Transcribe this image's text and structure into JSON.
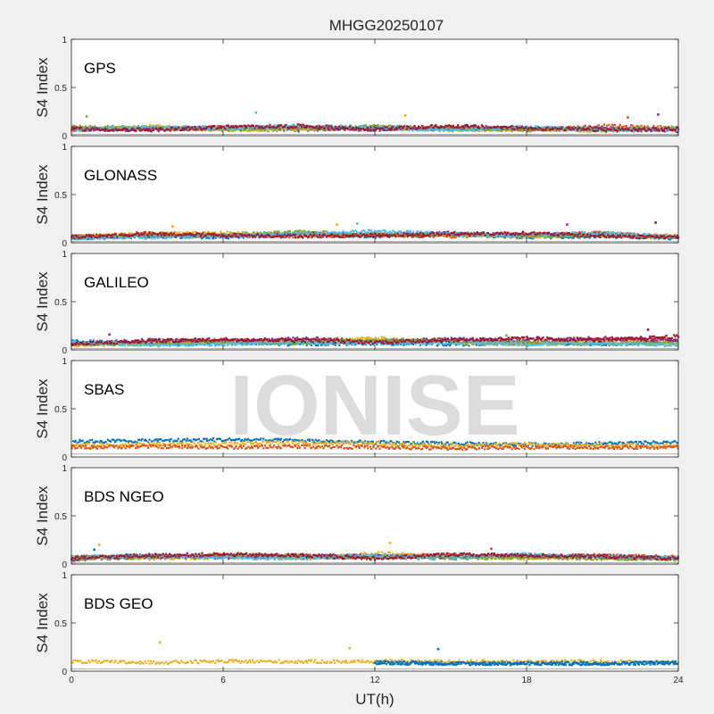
{
  "chart_data": {
    "type": "scatter",
    "title": "MHGG20250107",
    "xlabel": "UT(h)",
    "ylabel": "S4 Index",
    "xlim": [
      0,
      24
    ],
    "ylim": [
      0,
      1
    ],
    "xticks": [
      0,
      6,
      12,
      18,
      24
    ],
    "yticks": [
      0,
      0.5,
      1
    ],
    "ytick_labels": [
      "0",
      "0.5",
      "1"
    ],
    "watermark": "IONISE",
    "palette": [
      "#0072BD",
      "#D95319",
      "#EDB120",
      "#7E2F8E",
      "#77AC30",
      "#4DBEEE",
      "#A2142F"
    ],
    "panels": [
      {
        "label": "GPS",
        "trace_baseline": 0.05,
        "series": [
          {
            "color": "#0072BD",
            "x": [
              0,
              3,
              6,
              9,
              12,
              15,
              18,
              21,
              24
            ],
            "y": [
              0.06,
              0.08,
              0.07,
              0.06,
              0.09,
              0.07,
              0.08,
              0.06,
              0.07
            ]
          },
          {
            "color": "#D95319",
            "x": [
              0,
              3,
              6,
              9,
              12,
              15,
              18,
              21,
              24
            ],
            "y": [
              0.08,
              0.07,
              0.09,
              0.08,
              0.07,
              0.09,
              0.06,
              0.1,
              0.08
            ]
          },
          {
            "color": "#EDB120",
            "x": [
              0,
              3,
              6,
              9,
              12,
              15,
              18,
              21,
              24
            ],
            "y": [
              0.05,
              0.1,
              0.06,
              0.07,
              0.08,
              0.06,
              0.07,
              0.05,
              0.06
            ]
          },
          {
            "color": "#7E2F8E",
            "x": [
              0,
              3,
              6,
              9,
              12,
              15,
              18,
              21,
              24
            ],
            "y": [
              0.07,
              0.06,
              0.08,
              0.09,
              0.06,
              0.08,
              0.07,
              0.08,
              0.05
            ]
          },
          {
            "color": "#77AC30",
            "x": [
              0,
              3,
              6,
              9,
              12,
              15,
              18,
              21,
              24
            ],
            "y": [
              0.09,
              0.08,
              0.07,
              0.08,
              0.1,
              0.07,
              0.06,
              0.07,
              0.08
            ]
          },
          {
            "color": "#4DBEEE",
            "x": [
              0,
              3,
              6,
              9,
              12,
              15,
              18,
              21,
              24
            ],
            "y": [
              0.06,
              0.09,
              0.08,
              0.1,
              0.08,
              0.06,
              0.09,
              0.06,
              0.07
            ]
          },
          {
            "color": "#A2142F",
            "x": [
              0,
              3,
              6,
              9,
              12,
              15,
              18,
              21,
              24
            ],
            "y": [
              0.07,
              0.06,
              0.09,
              0.1,
              0.07,
              0.1,
              0.08,
              0.06,
              0.07
            ]
          }
        ],
        "outliers": [
          {
            "color": "#77AC30",
            "x": 0.6,
            "y": 0.2
          },
          {
            "color": "#4DBEEE",
            "x": 7.3,
            "y": 0.24
          },
          {
            "color": "#EDB120",
            "x": 13.2,
            "y": 0.21
          },
          {
            "color": "#7E2F8E",
            "x": 23.2,
            "y": 0.22
          },
          {
            "color": "#D95319",
            "x": 22,
            "y": 0.19
          }
        ]
      },
      {
        "label": "GLONASS",
        "trace_baseline": 0.05,
        "series": [
          {
            "color": "#0072BD",
            "x": [
              0,
              3,
              6,
              9,
              12,
              15,
              18,
              21,
              24
            ],
            "y": [
              0.05,
              0.07,
              0.06,
              0.08,
              0.07,
              0.08,
              0.06,
              0.07,
              0.05
            ]
          },
          {
            "color": "#D95319",
            "x": [
              0,
              3,
              6,
              9,
              12,
              15,
              18,
              21,
              24
            ],
            "y": [
              0.06,
              0.1,
              0.08,
              0.07,
              0.08,
              0.07,
              0.09,
              0.1,
              0.06
            ]
          },
          {
            "color": "#EDB120",
            "x": [
              0,
              3,
              6,
              9,
              12,
              15,
              18,
              21,
              24
            ],
            "y": [
              0.07,
              0.09,
              0.1,
              0.09,
              0.1,
              0.08,
              0.07,
              0.08,
              0.07
            ]
          },
          {
            "color": "#7E2F8E",
            "x": [
              0,
              3,
              6,
              9,
              12,
              15,
              18,
              21,
              24
            ],
            "y": [
              0.06,
              0.08,
              0.07,
              0.1,
              0.08,
              0.1,
              0.08,
              0.09,
              0.06
            ]
          },
          {
            "color": "#77AC30",
            "x": [
              0,
              3,
              6,
              9,
              12,
              15,
              18,
              21,
              24
            ],
            "y": [
              0.05,
              0.07,
              0.08,
              0.11,
              0.09,
              0.09,
              0.07,
              0.08,
              0.05
            ]
          },
          {
            "color": "#4DBEEE",
            "x": [
              0,
              3,
              6,
              9,
              12,
              15,
              18,
              21,
              24
            ],
            "y": [
              0.05,
              0.06,
              0.07,
              0.09,
              0.12,
              0.09,
              0.08,
              0.1,
              0.06
            ]
          },
          {
            "color": "#A2142F",
            "x": [
              0,
              3,
              6,
              9,
              12,
              15,
              18,
              21,
              24
            ],
            "y": [
              0.06,
              0.09,
              0.08,
              0.07,
              0.08,
              0.09,
              0.1,
              0.07,
              0.06
            ]
          }
        ],
        "outliers": [
          {
            "color": "#EDB120",
            "x": 10.5,
            "y": 0.19
          },
          {
            "color": "#4DBEEE",
            "x": 11.3,
            "y": 0.2
          },
          {
            "color": "#A2142F",
            "x": 23.1,
            "y": 0.21
          },
          {
            "color": "#7E2F8E",
            "x": 19.6,
            "y": 0.19
          },
          {
            "color": "#EDB120",
            "x": 4,
            "y": 0.17
          }
        ]
      },
      {
        "label": "GALILEO",
        "trace_baseline": 0.05,
        "series": [
          {
            "color": "#0072BD",
            "x": [
              0,
              3,
              6,
              9,
              12,
              15,
              18,
              21,
              24
            ],
            "y": [
              0.09,
              0.06,
              0.07,
              0.06,
              0.07,
              0.06,
              0.07,
              0.06,
              0.08
            ]
          },
          {
            "color": "#D95319",
            "x": [
              0,
              3,
              6,
              9,
              12,
              15,
              18,
              21,
              24
            ],
            "y": [
              0.06,
              0.08,
              0.1,
              0.09,
              0.08,
              0.1,
              0.07,
              0.11,
              0.1
            ]
          },
          {
            "color": "#EDB120",
            "x": [
              0,
              3,
              6,
              9,
              12,
              15,
              18,
              21,
              24
            ],
            "y": [
              0.05,
              0.07,
              0.08,
              0.1,
              0.12,
              0.08,
              0.06,
              0.08,
              0.07
            ]
          },
          {
            "color": "#7E2F8E",
            "x": [
              0,
              3,
              6,
              9,
              12,
              15,
              18,
              21,
              24
            ],
            "y": [
              0.06,
              0.1,
              0.09,
              0.12,
              0.09,
              0.11,
              0.1,
              0.12,
              0.1
            ]
          },
          {
            "color": "#77AC30",
            "x": [
              0,
              3,
              6,
              9,
              12,
              15,
              18,
              21,
              24
            ],
            "y": [
              0.07,
              0.06,
              0.08,
              0.07,
              0.1,
              0.09,
              0.08,
              0.07,
              0.06
            ]
          },
          {
            "color": "#4DBEEE",
            "x": [
              0,
              3,
              6,
              9,
              12,
              15,
              18,
              21,
              24
            ],
            "y": [
              0.08,
              0.05,
              0.06,
              0.08,
              0.07,
              0.08,
              0.06,
              0.07,
              0.05
            ]
          },
          {
            "color": "#A2142F",
            "x": [
              0,
              3,
              6,
              9,
              12,
              15,
              18,
              21,
              24
            ],
            "y": [
              0.06,
              0.09,
              0.11,
              0.1,
              0.08,
              0.1,
              0.12,
              0.1,
              0.14
            ]
          }
        ],
        "outliers": [
          {
            "color": "#A2142F",
            "x": 22.8,
            "y": 0.21
          },
          {
            "color": "#7E2F8E",
            "x": 1.5,
            "y": 0.16
          },
          {
            "color": "#77AC30",
            "x": 17.2,
            "y": 0.15
          }
        ]
      },
      {
        "label": "SBAS",
        "trace_baseline": 0.1,
        "series": [
          {
            "color": "#0072BD",
            "x": [
              0,
              3,
              6,
              9,
              12,
              15,
              18,
              21,
              24
            ],
            "y": [
              0.16,
              0.17,
              0.18,
              0.17,
              0.15,
              0.14,
              0.13,
              0.14,
              0.15
            ]
          },
          {
            "color": "#EDB120",
            "x": [
              0,
              3,
              6,
              9,
              12,
              15,
              18,
              21,
              24
            ],
            "y": [
              0.12,
              0.13,
              0.14,
              0.15,
              0.14,
              0.12,
              0.13,
              0.12,
              0.12
            ]
          },
          {
            "color": "#D95319",
            "x": [
              0,
              3,
              6,
              9,
              12,
              15,
              18,
              21,
              24
            ],
            "y": [
              0.1,
              0.11,
              0.1,
              0.11,
              0.1,
              0.09,
              0.1,
              0.1,
              0.1
            ]
          }
        ],
        "outliers": []
      },
      {
        "label": "BDS NGEO",
        "trace_baseline": 0.05,
        "series": [
          {
            "color": "#0072BD",
            "x": [
              0,
              3,
              6,
              9,
              12,
              15,
              18,
              21,
              24
            ],
            "y": [
              0.07,
              0.09,
              0.08,
              0.07,
              0.08,
              0.09,
              0.07,
              0.08,
              0.06
            ]
          },
          {
            "color": "#D95319",
            "x": [
              0,
              3,
              6,
              9,
              12,
              15,
              18,
              21,
              24
            ],
            "y": [
              0.06,
              0.08,
              0.09,
              0.08,
              0.07,
              0.1,
              0.08,
              0.09,
              0.07
            ]
          },
          {
            "color": "#EDB120",
            "x": [
              0,
              3,
              6,
              9,
              12,
              15,
              18,
              21,
              24
            ],
            "y": [
              0.08,
              0.06,
              0.07,
              0.06,
              0.11,
              0.08,
              0.06,
              0.07,
              0.06
            ]
          },
          {
            "color": "#7E2F8E",
            "x": [
              0,
              3,
              6,
              9,
              12,
              15,
              18,
              21,
              24
            ],
            "y": [
              0.05,
              0.08,
              0.07,
              0.09,
              0.08,
              0.07,
              0.09,
              0.07,
              0.06
            ]
          },
          {
            "color": "#77AC30",
            "x": [
              0,
              3,
              6,
              9,
              12,
              15,
              18,
              21,
              24
            ],
            "y": [
              0.06,
              0.07,
              0.1,
              0.08,
              0.07,
              0.06,
              0.07,
              0.06,
              0.05
            ]
          },
          {
            "color": "#4DBEEE",
            "x": [
              0,
              3,
              6,
              9,
              12,
              15,
              18,
              21,
              24
            ],
            "y": [
              0.07,
              0.08,
              0.07,
              0.06,
              0.09,
              0.07,
              0.1,
              0.08,
              0.07
            ]
          },
          {
            "color": "#A2142F",
            "x": [
              0,
              3,
              6,
              9,
              12,
              15,
              18,
              21,
              24
            ],
            "y": [
              0.06,
              0.09,
              0.1,
              0.09,
              0.06,
              0.1,
              0.09,
              0.08,
              0.06
            ]
          }
        ],
        "outliers": [
          {
            "color": "#EDB120",
            "x": 1.1,
            "y": 0.2
          },
          {
            "color": "#EDB120",
            "x": 12.6,
            "y": 0.22
          },
          {
            "color": "#D95319",
            "x": 16.6,
            "y": 0.16
          },
          {
            "color": "#0072BD",
            "x": 0.9,
            "y": 0.15
          }
        ]
      },
      {
        "label": "BDS GEO",
        "trace_baseline": 0.08,
        "series": [
          {
            "color": "#EDB120",
            "x": [
              0,
              3,
              6,
              9,
              12,
              15,
              18,
              21,
              24
            ],
            "y": [
              0.1,
              0.09,
              0.1,
              0.1,
              0.1,
              0.1,
              0.1,
              0.1,
              0.09
            ]
          },
          {
            "color": "#0072BD",
            "x": [
              12,
              15,
              18,
              21,
              24
            ],
            "y": [
              0.09,
              0.08,
              0.08,
              0.08,
              0.09
            ]
          }
        ],
        "outliers": [
          {
            "color": "#EDB120",
            "x": 3.5,
            "y": 0.3
          },
          {
            "color": "#EDB120",
            "x": 11,
            "y": 0.24
          },
          {
            "color": "#0072BD",
            "x": 14.5,
            "y": 0.23
          }
        ]
      }
    ]
  }
}
